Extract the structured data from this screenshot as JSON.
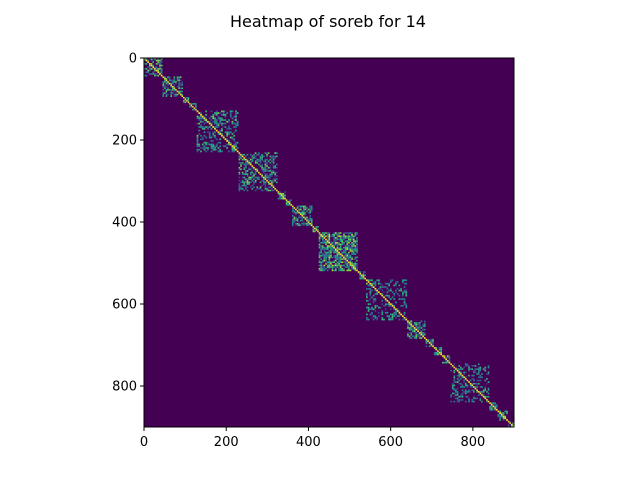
{
  "chart_data": {
    "type": "heatmap",
    "title": "Heatmap of soreb for 14",
    "xlabel": "",
    "ylabel": "",
    "matrix_size": 900,
    "xlim": [
      0,
      900
    ],
    "ylim": [
      900,
      0
    ],
    "x_ticks": [
      0,
      200,
      400,
      600,
      800
    ],
    "y_ticks": [
      0,
      200,
      400,
      600,
      800
    ],
    "x_tick_labels": [
      "0",
      "200",
      "400",
      "600",
      "800"
    ],
    "y_tick_labels": [
      "0",
      "200",
      "400",
      "600",
      "800"
    ],
    "colormap": "viridis",
    "background_color": "#440154",
    "value_range": [
      0,
      1
    ],
    "blocks": [
      {
        "start": 0,
        "end": 45,
        "density": 0.6
      },
      {
        "start": 45,
        "end": 95,
        "density": 0.55
      },
      {
        "start": 95,
        "end": 110,
        "density": 0.7
      },
      {
        "start": 110,
        "end": 128,
        "density": 0.7
      },
      {
        "start": 128,
        "end": 230,
        "density": 0.4
      },
      {
        "start": 230,
        "end": 325,
        "density": 0.5
      },
      {
        "start": 325,
        "end": 345,
        "density": 0.7
      },
      {
        "start": 345,
        "end": 360,
        "density": 0.7
      },
      {
        "start": 360,
        "end": 410,
        "density": 0.6
      },
      {
        "start": 410,
        "end": 425,
        "density": 0.7
      },
      {
        "start": 425,
        "end": 520,
        "density": 0.75
      },
      {
        "start": 520,
        "end": 540,
        "density": 0.7
      },
      {
        "start": 540,
        "end": 640,
        "density": 0.35
      },
      {
        "start": 640,
        "end": 685,
        "density": 0.6
      },
      {
        "start": 685,
        "end": 705,
        "density": 0.7
      },
      {
        "start": 705,
        "end": 725,
        "density": 0.7
      },
      {
        "start": 725,
        "end": 745,
        "density": 0.7
      },
      {
        "start": 745,
        "end": 840,
        "density": 0.35
      },
      {
        "start": 840,
        "end": 860,
        "density": 0.7
      },
      {
        "start": 860,
        "end": 885,
        "density": 0.6
      },
      {
        "start": 885,
        "end": 900,
        "density": 0.7
      }
    ]
  }
}
